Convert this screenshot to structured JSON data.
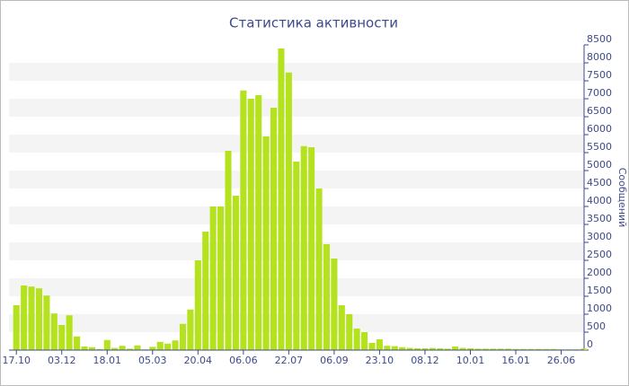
{
  "chart_data": {
    "type": "bar",
    "title": "Статистика активности",
    "y_label": "Сообщений",
    "categories": [
      "17.10",
      null,
      null,
      null,
      null,
      null,
      "03.12",
      null,
      null,
      null,
      null,
      null,
      "18.01",
      null,
      null,
      null,
      null,
      null,
      "05.03",
      null,
      null,
      null,
      null,
      null,
      "20.04",
      null,
      null,
      null,
      null,
      null,
      "06.06",
      null,
      null,
      null,
      null,
      null,
      "22.07",
      null,
      null,
      null,
      null,
      null,
      "06.09",
      null,
      null,
      null,
      null,
      null,
      "23.10",
      null,
      null,
      null,
      null,
      null,
      "08.12",
      null,
      null,
      null,
      null,
      null,
      "10.01",
      null,
      null,
      null,
      null,
      null,
      "16.01",
      null,
      null,
      null,
      null,
      null,
      "26.06",
      null,
      null,
      null
    ],
    "values": [
      1250,
      1800,
      1770,
      1720,
      1520,
      1020,
      700,
      970,
      380,
      100,
      80,
      30,
      280,
      60,
      120,
      40,
      130,
      20,
      90,
      230,
      180,
      270,
      730,
      1130,
      2500,
      3300,
      4000,
      4000,
      5550,
      4300,
      7230,
      7000,
      7100,
      5950,
      6750,
      8400,
      7730,
      5250,
      5680,
      5650,
      4500,
      2950,
      2550,
      1250,
      1000,
      600,
      500,
      200,
      300,
      120,
      110,
      80,
      60,
      50,
      50,
      60,
      50,
      40,
      100,
      60,
      50,
      40,
      40,
      40,
      40,
      40,
      30,
      30,
      30,
      30,
      30,
      30,
      20,
      20,
      20,
      40
    ],
    "color": "#b5e21e",
    "ylim": [
      0,
      8500
    ],
    "yticks": [
      0,
      500,
      1000,
      1500,
      2000,
      2500,
      3000,
      3500,
      4000,
      4500,
      5000,
      5500,
      6000,
      6500,
      7000,
      7500,
      8000,
      8500
    ],
    "grid": true,
    "y_axis_side": "right"
  }
}
